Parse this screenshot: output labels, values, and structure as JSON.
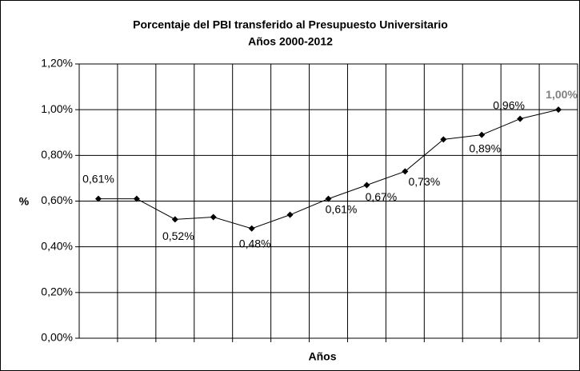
{
  "chart_data": {
    "type": "line",
    "title": "Porcentaje del PBI transferido al Presupuesto Universitario",
    "subtitle": "Años 2000-2012",
    "x_label": "Años",
    "y_label": "%",
    "categories": [
      null,
      null,
      null,
      null,
      null,
      null,
      null,
      null,
      null,
      null,
      null,
      null,
      null
    ],
    "series": [
      {
        "name": null,
        "color": "#000000",
        "values": [
          0.61,
          0.61,
          0.52,
          0.53,
          0.48,
          0.54,
          0.61,
          0.67,
          0.73,
          0.87,
          0.89,
          0.96,
          1.0
        ],
        "value_labels": [
          "0,61%",
          null,
          "0,52%",
          null,
          "0,48%",
          null,
          "0,61%",
          "0,67%",
          "0,73%",
          null,
          "0,89%",
          "0,96%",
          "1,00%"
        ]
      }
    ],
    "ylim": [
      0,
      1.2
    ],
    "yticks": [
      {
        "value": 0,
        "label": "0,00%"
      },
      {
        "value": 0.2,
        "label": "0,20%"
      },
      {
        "value": 0.4,
        "label": "0,40%"
      },
      {
        "value": 0.6,
        "label": "0,60%"
      },
      {
        "value": 0.8,
        "label": "0,80%"
      },
      {
        "value": 1.0,
        "label": "1,00%"
      },
      {
        "value": 1.2,
        "label": "1,20%"
      }
    ],
    "grid": true
  }
}
